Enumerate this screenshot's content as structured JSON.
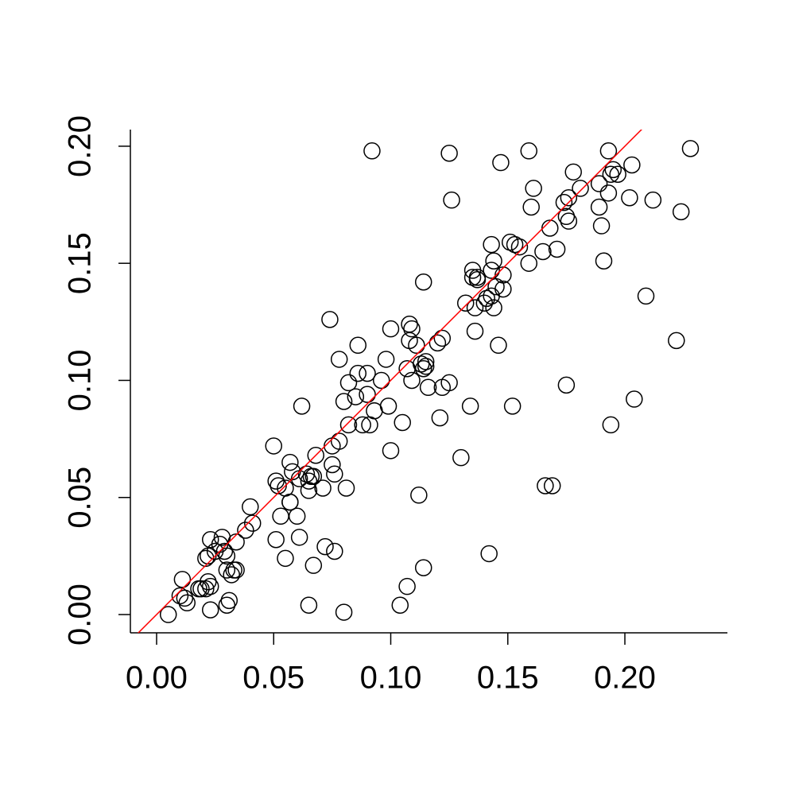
{
  "chart_data": {
    "type": "scatter",
    "xlim": [
      -0.0112,
      0.2438
    ],
    "ylim": [
      -0.0078,
      0.2071
    ],
    "xticks": [
      {
        "value": 0,
        "label": "0.00"
      },
      0.05,
      {
        "value": 0.1,
        "label": "0.10"
      },
      0.15,
      {
        "value": 0.2,
        "label": "0.20"
      }
    ],
    "yticks": [
      {
        "value": 0,
        "label": "0.00"
      },
      0.05,
      {
        "value": 0.1,
        "label": "0.10"
      },
      0.15,
      {
        "value": 0.2,
        "label": "0.20"
      }
    ],
    "reference_line": {
      "intercept": 0,
      "slope": 1,
      "color": "#ff0000"
    },
    "series": [
      {
        "color": "#000000",
        "x": [
          0.005,
          0.011,
          0.01,
          0.013,
          0.012,
          0.018,
          0.019,
          0.021,
          0.022,
          0.023,
          0.023,
          0.021,
          0.022,
          0.023,
          0.025,
          0.027,
          0.028,
          0.029,
          0.03,
          0.03,
          0.032,
          0.033,
          0.034,
          0.03,
          0.031,
          0.034,
          0.038,
          0.04,
          0.041,
          0.05,
          0.051,
          0.052,
          0.051,
          0.055,
          0.053,
          0.055,
          0.057,
          0.058,
          0.057,
          0.057,
          0.06,
          0.061,
          0.061,
          0.062,
          0.064,
          0.065,
          0.066,
          0.067,
          0.065,
          0.067,
          0.065,
          0.068,
          0.071,
          0.072,
          0.075,
          0.076,
          0.075,
          0.076,
          0.078,
          0.081,
          0.08,
          0.074,
          0.078,
          0.08,
          0.082,
          0.082,
          0.085,
          0.086,
          0.086,
          0.088,
          0.09,
          0.09,
          0.091,
          0.093,
          0.092,
          0.096,
          0.098,
          0.099,
          0.1,
          0.1,
          0.104,
          0.105,
          0.107,
          0.107,
          0.108,
          0.109,
          0.108,
          0.109,
          0.111,
          0.112,
          0.113,
          0.114,
          0.115,
          0.115,
          0.114,
          0.114,
          0.116,
          0.12,
          0.122,
          0.121,
          0.122,
          0.125,
          0.125,
          0.126,
          0.13,
          0.132,
          0.134,
          0.135,
          0.135,
          0.136,
          0.136,
          0.137,
          0.137,
          0.14,
          0.141,
          0.142,
          0.143,
          0.143,
          0.144,
          0.143,
          0.144,
          0.145,
          0.146,
          0.147,
          0.148,
          0.148,
          0.152,
          0.151,
          0.153,
          0.155,
          0.159,
          0.159,
          0.16,
          0.161,
          0.165,
          0.166,
          0.169,
          0.168,
          0.171,
          0.175,
          0.174,
          0.175,
          0.176,
          0.176,
          0.178,
          0.181,
          0.189,
          0.189,
          0.19,
          0.191,
          0.193,
          0.193,
          0.194,
          0.194,
          0.195,
          0.197,
          0.202,
          0.203,
          0.204,
          0.209,
          0.212,
          0.222,
          0.224,
          0.228
        ],
        "values": [
          0.0,
          0.015,
          0.008,
          0.005,
          0.007,
          0.011,
          0.011,
          0.011,
          0.014,
          0.012,
          0.002,
          0.024,
          0.025,
          0.032,
          0.027,
          0.03,
          0.033,
          0.027,
          0.025,
          0.019,
          0.017,
          0.019,
          0.019,
          0.004,
          0.006,
          0.031,
          0.036,
          0.046,
          0.039,
          0.072,
          0.057,
          0.055,
          0.032,
          0.024,
          0.042,
          0.054,
          0.065,
          0.061,
          0.048,
          0.048,
          0.042,
          0.033,
          0.058,
          0.089,
          0.06,
          0.057,
          0.059,
          0.059,
          0.053,
          0.021,
          0.004,
          0.068,
          0.054,
          0.029,
          0.064,
          0.027,
          0.072,
          0.06,
          0.074,
          0.054,
          0.001,
          0.126,
          0.109,
          0.091,
          0.081,
          0.099,
          0.093,
          0.115,
          0.103,
          0.081,
          0.103,
          0.094,
          0.081,
          0.087,
          0.198,
          0.1,
          0.109,
          0.089,
          0.122,
          0.07,
          0.004,
          0.082,
          0.105,
          0.012,
          0.124,
          0.122,
          0.117,
          0.1,
          0.115,
          0.051,
          0.107,
          0.105,
          0.108,
          0.106,
          0.142,
          0.02,
          0.097,
          0.116,
          0.118,
          0.084,
          0.097,
          0.099,
          0.197,
          0.177,
          0.067,
          0.133,
          0.089,
          0.147,
          0.144,
          0.131,
          0.121,
          0.143,
          0.144,
          0.133,
          0.135,
          0.026,
          0.158,
          0.147,
          0.151,
          0.136,
          0.131,
          0.14,
          0.115,
          0.193,
          0.145,
          0.139,
          0.089,
          0.159,
          0.158,
          0.157,
          0.198,
          0.15,
          0.174,
          0.182,
          0.155,
          0.055,
          0.055,
          0.165,
          0.156,
          0.098,
          0.176,
          0.17,
          0.168,
          0.178,
          0.189,
          0.182,
          0.184,
          0.174,
          0.166,
          0.151,
          0.18,
          0.198,
          0.081,
          0.188,
          0.19,
          0.188,
          0.178,
          0.192,
          0.092,
          0.136,
          0.177,
          0.117,
          0.172,
          0.199
        ]
      }
    ]
  }
}
